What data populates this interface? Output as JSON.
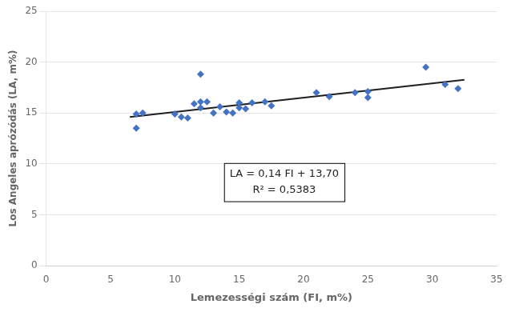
{
  "chart_data": {
    "type": "scatter",
    "xlabel": "Lemezességi szám (FI, m%)",
    "ylabel": "Los Angeles aprózódás (LA, m%)",
    "series": [
      {
        "type": "scatter",
        "marker": "diamond",
        "color": "#4472C4",
        "x": [
          7,
          7,
          7.5,
          10,
          10.5,
          11,
          11.5,
          12,
          12,
          12,
          12.5,
          13,
          13.5,
          14,
          14.5,
          15,
          15,
          15.5,
          16,
          17,
          17.5,
          21,
          22,
          24,
          25,
          25,
          29.5,
          31,
          32
        ],
        "values": [
          14.9,
          13.5,
          15.0,
          14.9,
          14.6,
          14.5,
          15.9,
          16.1,
          15.5,
          18.8,
          16.1,
          15.0,
          15.6,
          15.1,
          15.0,
          15.5,
          16.0,
          15.4,
          16.0,
          16.1,
          15.7,
          17.0,
          16.6,
          17.0,
          17.1,
          16.5,
          19.5,
          17.8,
          17.4
        ]
      },
      {
        "type": "line",
        "line_style": "solid",
        "color": "#1F1F1F",
        "x": [
          6.5,
          32.5
        ],
        "values": [
          14.61,
          18.25
        ]
      }
    ],
    "annotations": [
      {
        "text": "LA = 0,14 FI + 13,70\nR² = 0,5383",
        "x": 18.5,
        "y": 8.2
      }
    ],
    "xlim": [
      0,
      35
    ],
    "ylim": [
      0,
      25
    ],
    "xticks": [
      0,
      5,
      10,
      15,
      20,
      25,
      30,
      35
    ],
    "yticks": [
      0,
      5,
      10,
      15,
      20,
      25
    ],
    "grid": "y"
  }
}
